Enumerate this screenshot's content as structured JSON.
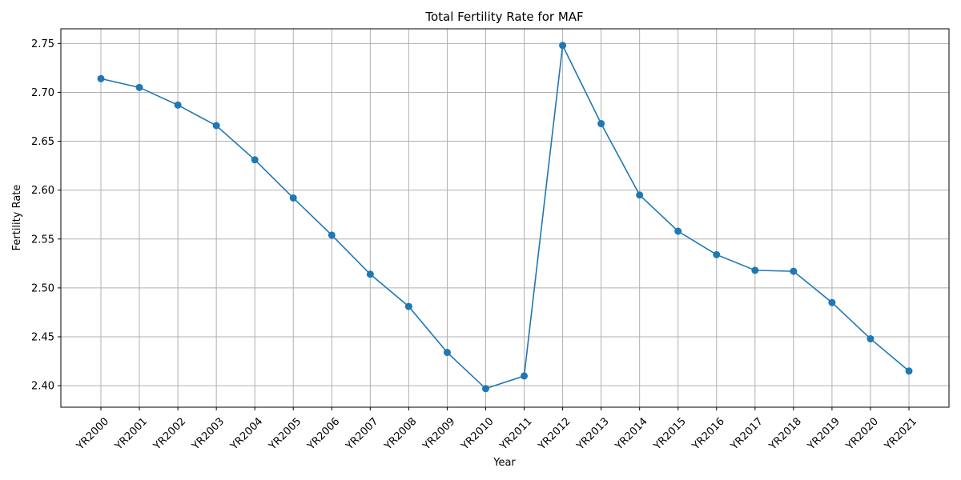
{
  "chart_data": {
    "type": "line",
    "title": "Total Fertility Rate for MAF",
    "xlabel": "Year",
    "ylabel": "Fertility Rate",
    "categories": [
      "YR2000",
      "YR2001",
      "YR2002",
      "YR2003",
      "YR2004",
      "YR2005",
      "YR2006",
      "YR2007",
      "YR2008",
      "YR2009",
      "YR2010",
      "YR2011",
      "YR2012",
      "YR2013",
      "YR2014",
      "YR2015",
      "YR2016",
      "YR2017",
      "YR2018",
      "YR2019",
      "YR2020",
      "YR2021"
    ],
    "series": [
      {
        "name": "Fertility Rate",
        "color": "#1f77b4",
        "values": [
          2.714,
          2.705,
          2.687,
          2.666,
          2.631,
          2.592,
          2.554,
          2.514,
          2.481,
          2.434,
          2.397,
          2.41,
          2.748,
          2.668,
          2.595,
          2.558,
          2.534,
          2.518,
          2.517,
          2.485,
          2.448,
          2.415
        ]
      }
    ],
    "ylim": [
      2.378,
      2.765
    ],
    "yticks": [
      "2.40",
      "2.45",
      "2.50",
      "2.55",
      "2.60",
      "2.65",
      "2.70",
      "2.75"
    ],
    "grid": true
  }
}
